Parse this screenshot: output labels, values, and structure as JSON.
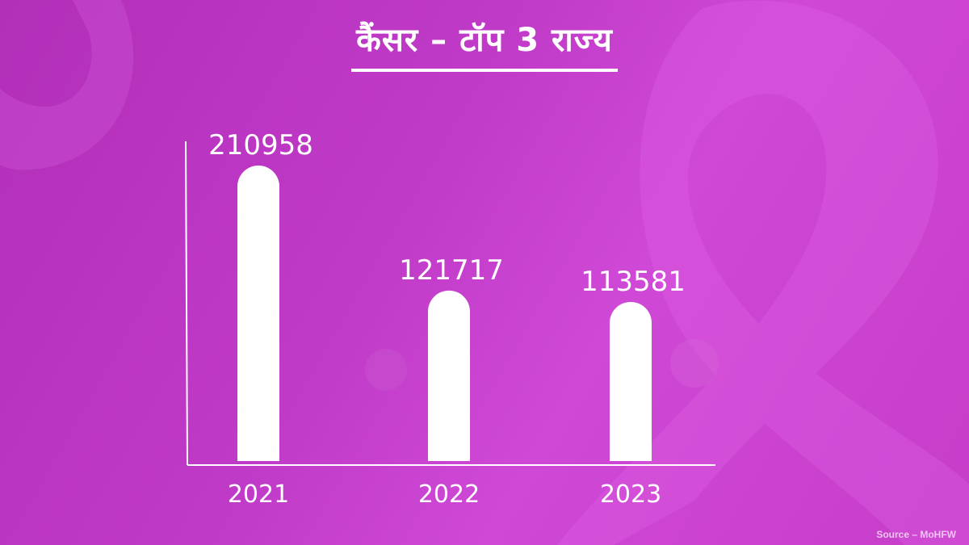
{
  "title": "कैंसर – टॉप 3 राज्य",
  "source": "Source – MoHFW",
  "colors": {
    "bar": "#ffffff",
    "text": "#ffffff",
    "background": "#c03ac8"
  },
  "chart_data": {
    "type": "bar",
    "title": "कैंसर – टॉप 3 राज्य",
    "categories": [
      "2021",
      "2022",
      "2023"
    ],
    "values": [
      210958,
      121717,
      113581
    ],
    "data_labels": [
      "210958",
      "121717",
      "113581"
    ],
    "xlabel": "",
    "ylabel": "",
    "ylim": [
      0,
      210958
    ],
    "grid": false,
    "legend": "none"
  }
}
